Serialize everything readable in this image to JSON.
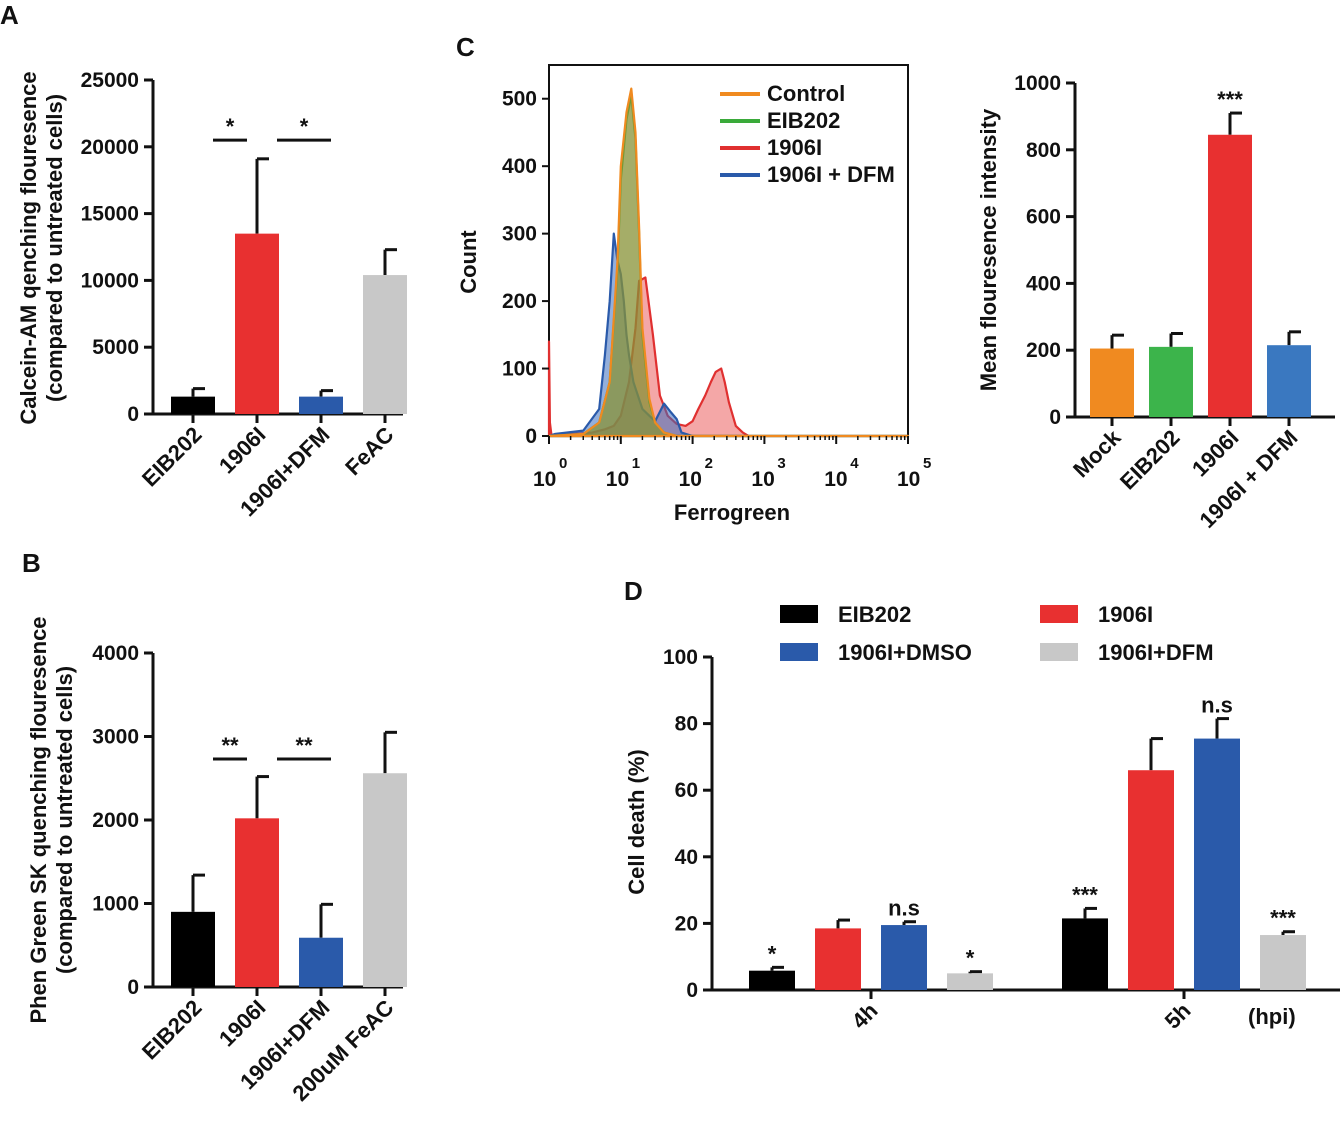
{
  "panels": {
    "A": "A",
    "B": "B",
    "C": "C",
    "D": "D"
  },
  "chart_data": [
    {
      "id": "A",
      "type": "bar",
      "ylabel_lines": [
        "Calcein-AM qenching flouresence",
        "(compared to untreated cells)"
      ],
      "categories": [
        "EIB202",
        "1906I",
        "1906I+DFM",
        "FeAC"
      ],
      "values": [
        1300,
        13500,
        1300,
        10400
      ],
      "errors": [
        600,
        5600,
        450,
        1900
      ],
      "colors": [
        "#000000",
        "#e83030",
        "#2a5aaa",
        "#c8c8c8"
      ],
      "ylim": [
        0,
        25000
      ],
      "yticks": [
        0,
        5000,
        10000,
        15000,
        20000,
        25000
      ],
      "significance": [
        {
          "from": 0,
          "to": 1,
          "label": "*",
          "y": 20500
        },
        {
          "from": 1,
          "to": 2,
          "label": "*",
          "y": 20500
        }
      ]
    },
    {
      "id": "B",
      "type": "bar",
      "ylabel_lines": [
        "Phen Green SK quenching flouresence",
        "(compared to untreated cells)"
      ],
      "categories": [
        "EIB202",
        "1906I",
        "1906I+DFM",
        "200uM FeAC"
      ],
      "values": [
        900,
        2020,
        590,
        2560
      ],
      "errors": [
        440,
        500,
        400,
        490
      ],
      "colors": [
        "#000000",
        "#e83030",
        "#2a5aaa",
        "#c8c8c8"
      ],
      "ylim": [
        0,
        4000
      ],
      "yticks": [
        0,
        1000,
        2000,
        3000,
        4000
      ],
      "significance": [
        {
          "from": 0,
          "to": 1,
          "label": "**",
          "y": 2730
        },
        {
          "from": 1,
          "to": 2,
          "label": "**",
          "y": 2730
        }
      ]
    },
    {
      "id": "C-histogram",
      "type": "area",
      "xlabel": "Ferrogreen",
      "ylabel": "Count",
      "xscale": "log",
      "xlim": [
        1,
        100000
      ],
      "xticks": [
        {
          "base": "10",
          "exp": "0"
        },
        {
          "base": "10",
          "exp": "1"
        },
        {
          "base": "10",
          "exp": "2"
        },
        {
          "base": "10",
          "exp": "3"
        },
        {
          "base": "10",
          "exp": "4"
        },
        {
          "base": "10",
          "exp": "5"
        }
      ],
      "ylim": [
        0,
        550
      ],
      "yticks": [
        0,
        100,
        200,
        300,
        400,
        500
      ],
      "legend_position": "top-right",
      "series": [
        {
          "name": "1906I",
          "color": "#e03030",
          "fill": "rgba(230,60,60,0.45)",
          "x": [
            1,
            1.03,
            1.08,
            2,
            4,
            6,
            8,
            10,
            13,
            16,
            18,
            22,
            28,
            35,
            45,
            60,
            80,
            100,
            120,
            150,
            180,
            210,
            250,
            280,
            320,
            400,
            500,
            600,
            1000,
            100000
          ],
          "y": [
            140,
            20,
            2,
            3,
            5,
            10,
            15,
            30,
            80,
            160,
            230,
            235,
            150,
            60,
            30,
            18,
            15,
            22,
            40,
            60,
            80,
            95,
            100,
            80,
            50,
            15,
            5,
            0,
            0,
            0
          ]
        },
        {
          "name": "1906I + DFM",
          "color": "#2a5aaa",
          "fill": "rgba(60,110,190,0.55)",
          "x": [
            1,
            1.2,
            3,
            5,
            6,
            7,
            8,
            9,
            10,
            11,
            12,
            13,
            15,
            20,
            25,
            30,
            40,
            50,
            60,
            70,
            100,
            120,
            100000
          ],
          "y": [
            0,
            3,
            8,
            40,
            120,
            200,
            300,
            260,
            240,
            200,
            150,
            120,
            80,
            40,
            30,
            22,
            48,
            35,
            25,
            5,
            0,
            0,
            0
          ]
        },
        {
          "name": "EIB202",
          "color": "#3aaa3a",
          "fill": "rgba(70,160,70,0.45)",
          "x": [
            1,
            3,
            5,
            7,
            9,
            10,
            12,
            14,
            16,
            18,
            20,
            25,
            30,
            40,
            60,
            100000
          ],
          "y": [
            0,
            3,
            20,
            80,
            250,
            380,
            470,
            505,
            440,
            300,
            150,
            50,
            20,
            5,
            0,
            0
          ]
        },
        {
          "name": "Control",
          "color": "#f08a20",
          "fill": "rgba(160,140,50,0.55)",
          "x": [
            1,
            3,
            5,
            7,
            9,
            10,
            12,
            14,
            16,
            18,
            20,
            25,
            30,
            40,
            60,
            100000
          ],
          "y": [
            0,
            3,
            20,
            80,
            260,
            400,
            480,
            515,
            450,
            310,
            160,
            55,
            20,
            5,
            0,
            0
          ]
        }
      ],
      "legend_order": [
        "Control",
        "EIB202",
        "1906I",
        "1906I + DFM"
      ]
    },
    {
      "id": "C-bar",
      "type": "bar",
      "ylabel": "Mean flouresence intensity",
      "categories": [
        "Mock",
        "EIB202",
        "1906I",
        "1906I + DFM"
      ],
      "values": [
        205,
        210,
        845,
        215
      ],
      "errors": [
        40,
        40,
        65,
        40
      ],
      "colors": [
        "#f08a20",
        "#3cb44b",
        "#e83030",
        "#3a78c0"
      ],
      "ylim": [
        0,
        1000
      ],
      "yticks": [
        0,
        200,
        400,
        600,
        800,
        1000
      ],
      "annotations": [
        {
          "index": 2,
          "label": "***"
        }
      ]
    },
    {
      "id": "D",
      "type": "bar",
      "ylabel": "Cell death (%)",
      "groups": [
        "4h",
        "5h"
      ],
      "xunit": "(hpi)",
      "series": [
        {
          "name": "EIB202",
          "color": "#000000",
          "values": [
            5.8,
            21.5
          ],
          "errors": [
            1.0,
            3.0
          ],
          "labels": [
            "*",
            "***"
          ]
        },
        {
          "name": "1906I",
          "color": "#e83030",
          "values": [
            18.5,
            66.0
          ],
          "errors": [
            2.5,
            9.5
          ],
          "labels": [
            "",
            ""
          ]
        },
        {
          "name": "1906I+DMSO",
          "color": "#2a5aaa",
          "values": [
            19.5,
            75.5
          ],
          "errors": [
            1.0,
            6.0
          ],
          "labels": [
            "n.s",
            "n.s"
          ]
        },
        {
          "name": "1906I+DFM",
          "color": "#c8c8c8",
          "values": [
            5.0,
            16.5
          ],
          "errors": [
            0.5,
            1.0
          ],
          "labels": [
            "*",
            "***"
          ]
        }
      ],
      "ylim": [
        0,
        100
      ],
      "yticks": [
        0,
        20,
        40,
        60,
        80,
        100
      ],
      "legend_position": "top"
    }
  ]
}
